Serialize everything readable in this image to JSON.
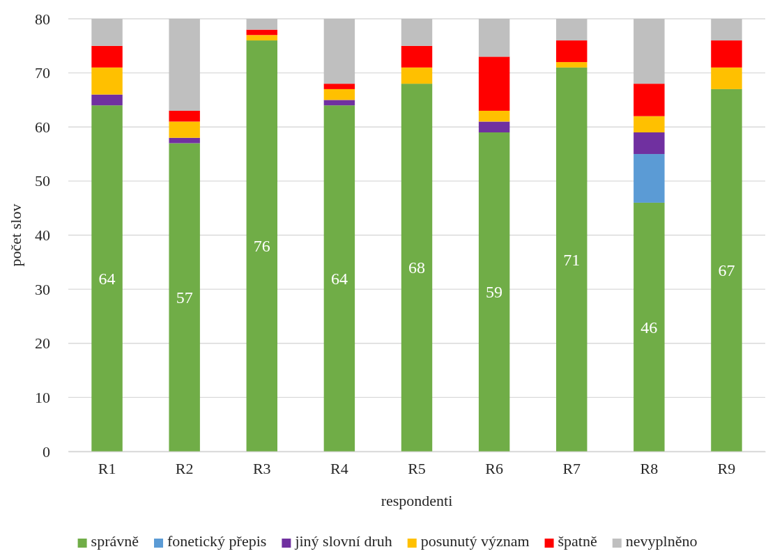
{
  "chart_data": {
    "type": "bar",
    "stacked": true,
    "xlabel": "respondenti",
    "ylabel": "počet slov",
    "categories": [
      "R1",
      "R2",
      "R3",
      "R4",
      "R5",
      "R6",
      "R7",
      "R8",
      "R9"
    ],
    "ylim": [
      0,
      80
    ],
    "yticks": [
      0,
      10,
      20,
      30,
      40,
      50,
      60,
      70,
      80
    ],
    "grid": "y",
    "legend": "bottom",
    "series": [
      {
        "name": "správně",
        "color": "#70ad47",
        "values": [
          64,
          57,
          76,
          64,
          68,
          59,
          71,
          46,
          67
        ],
        "value_labels": [
          "64",
          "57",
          "76",
          "64",
          "68",
          "59",
          "71",
          "46",
          "67"
        ]
      },
      {
        "name": "fonetický přepis",
        "color": "#5b9bd5",
        "values": [
          0,
          0,
          0,
          0,
          0,
          0,
          0,
          9,
          0
        ]
      },
      {
        "name": "jiný slovní druh",
        "color": "#7030a0",
        "values": [
          2,
          1,
          0,
          1,
          0,
          2,
          0,
          4,
          0
        ]
      },
      {
        "name": "posunutý význam",
        "color": "#ffc000",
        "values": [
          5,
          3,
          1,
          2,
          3,
          2,
          1,
          3,
          4
        ]
      },
      {
        "name": "špatně",
        "color": "#ff0000",
        "values": [
          4,
          2,
          1,
          1,
          4,
          10,
          4,
          6,
          5
        ]
      },
      {
        "name": "nevyplněno",
        "color": "#bfbfbf",
        "values": [
          5,
          17,
          2,
          12,
          5,
          7,
          4,
          12,
          4
        ]
      }
    ]
  }
}
